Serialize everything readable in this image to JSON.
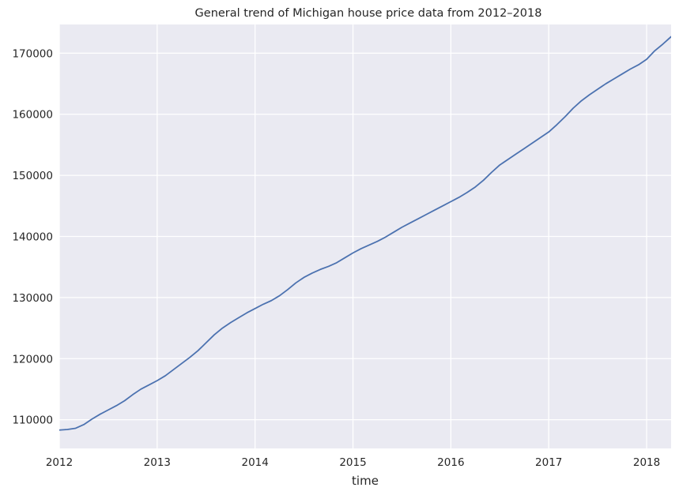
{
  "chart_data": {
    "type": "line",
    "title": "General trend of Michigan house price data from 2012–2018",
    "xlabel": "time",
    "ylabel": "",
    "xlim": [
      "2012-01",
      "2018-04"
    ],
    "ylim": [
      105300,
      174700
    ],
    "x_ticks": [
      "2012",
      "2013",
      "2014",
      "2015",
      "2016",
      "2017",
      "2018"
    ],
    "y_ticks": [
      110000,
      120000,
      130000,
      140000,
      150000,
      160000,
      170000
    ],
    "grid": true,
    "legend": "none",
    "series": [
      {
        "color": "#4c72b0",
        "x": [
          "2012-01",
          "2012-02",
          "2012-03",
          "2012-04",
          "2012-05",
          "2012-06",
          "2012-07",
          "2012-08",
          "2012-09",
          "2012-10",
          "2012-11",
          "2012-12",
          "2013-01",
          "2013-02",
          "2013-03",
          "2013-04",
          "2013-05",
          "2013-06",
          "2013-07",
          "2013-08",
          "2013-09",
          "2013-10",
          "2013-11",
          "2013-12",
          "2014-01",
          "2014-02",
          "2014-03",
          "2014-04",
          "2014-05",
          "2014-06",
          "2014-07",
          "2014-08",
          "2014-09",
          "2014-10",
          "2014-11",
          "2014-12",
          "2015-01",
          "2015-02",
          "2015-03",
          "2015-04",
          "2015-05",
          "2015-06",
          "2015-07",
          "2015-08",
          "2015-09",
          "2015-10",
          "2015-11",
          "2015-12",
          "2016-01",
          "2016-02",
          "2016-03",
          "2016-04",
          "2016-05",
          "2016-06",
          "2016-07",
          "2016-08",
          "2016-09",
          "2016-10",
          "2016-11",
          "2016-12",
          "2017-01",
          "2017-02",
          "2017-03",
          "2017-04",
          "2017-05",
          "2017-06",
          "2017-07",
          "2017-08",
          "2017-09",
          "2017-10",
          "2017-11",
          "2017-12",
          "2018-01",
          "2018-02",
          "2018-03",
          "2018-04"
        ],
        "values": [
          108300,
          108400,
          108600,
          109200,
          110100,
          110900,
          111600,
          112300,
          113100,
          114100,
          115000,
          115700,
          116400,
          117200,
          118200,
          119200,
          120200,
          121300,
          122600,
          123900,
          125000,
          125900,
          126700,
          127500,
          128200,
          128900,
          129500,
          130300,
          131300,
          132400,
          133300,
          134000,
          134600,
          135100,
          135700,
          136500,
          137300,
          138000,
          138600,
          139200,
          139900,
          140700,
          141500,
          142200,
          142900,
          143600,
          144300,
          145000,
          145700,
          146400,
          147200,
          148100,
          149200,
          150500,
          151700,
          152600,
          153500,
          154400,
          155300,
          156200,
          157100,
          158300,
          159600,
          161000,
          162200,
          163200,
          164100,
          165000,
          165800,
          166600,
          167400,
          168100,
          169000,
          170400,
          171500,
          172700
        ]
      }
    ]
  }
}
